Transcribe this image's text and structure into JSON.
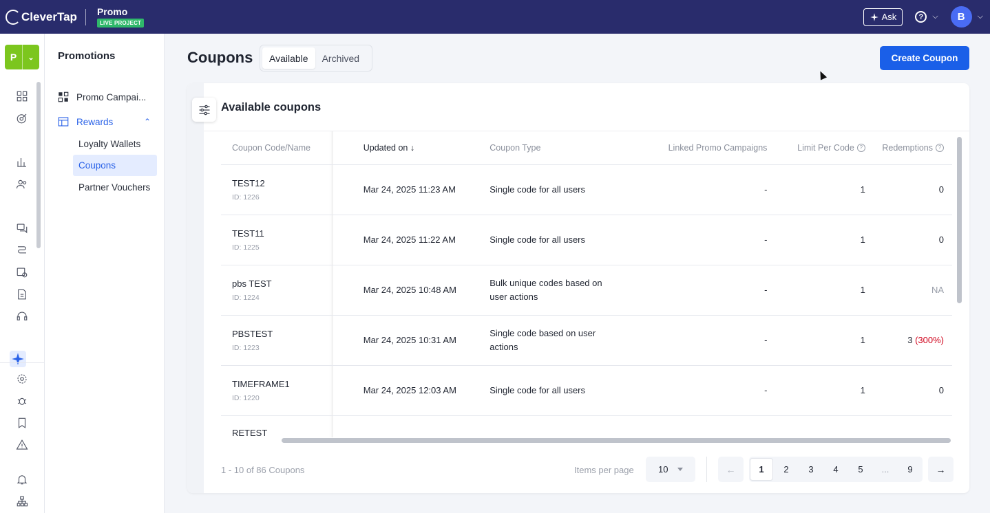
{
  "topbar": {
    "brand": "CleverTap",
    "project_name": "Promo",
    "project_badge": "LIVE PROJECT",
    "ask_label": "Ask",
    "help_icon": "?",
    "avatar_initial": "B"
  },
  "rail": {
    "project_initial": "P"
  },
  "subnav": {
    "title": "Promotions",
    "items": [
      {
        "label": "Promo Campai..."
      },
      {
        "label": "Rewards"
      }
    ],
    "rewards_children": [
      {
        "label": "Loyalty Wallets"
      },
      {
        "label": "Coupons"
      },
      {
        "label": "Partner Vouchers"
      }
    ]
  },
  "page": {
    "title": "Coupons",
    "tabs": [
      "Available",
      "Archived"
    ],
    "create_label": "Create Coupon"
  },
  "card": {
    "title": "Available coupons",
    "columns": [
      "Coupon Code/Name",
      "Updated on",
      "Coupon Type",
      "Linked Promo Campaigns",
      "Limit Per Code",
      "Redemptions"
    ],
    "sort_indicator": "↓",
    "rows": [
      {
        "name": "TEST12",
        "id": "ID: 1226",
        "updated": "Mar 24, 2025 11:23 AM",
        "type": "Single code for all users",
        "linked": "-",
        "limit": "1",
        "redemptions": "0",
        "redemptions_extra": ""
      },
      {
        "name": "TEST11",
        "id": "ID: 1225",
        "updated": "Mar 24, 2025 11:22 AM",
        "type": "Single code for all users",
        "linked": "-",
        "limit": "1",
        "redemptions": "0",
        "redemptions_extra": ""
      },
      {
        "name": "pbs TEST",
        "id": "ID: 1224",
        "updated": "Mar 24, 2025 10:48 AM",
        "type": "Bulk unique codes based on user actions",
        "linked": "-",
        "limit": "1",
        "redemptions": "NA",
        "redemptions_extra": ""
      },
      {
        "name": "PBSTEST",
        "id": "ID: 1223",
        "updated": "Mar 24, 2025 10:31 AM",
        "type": "Single code based on user actions",
        "linked": "-",
        "limit": "1",
        "redemptions": "3",
        "redemptions_extra": "(300%)"
      },
      {
        "name": "TIMEFRAME1",
        "id": "ID: 1220",
        "updated": "Mar 24, 2025 12:03 AM",
        "type": "Single code for all users",
        "linked": "-",
        "limit": "1",
        "redemptions": "0",
        "redemptions_extra": ""
      },
      {
        "name": "RETEST",
        "id": "",
        "updated": "",
        "type": "",
        "linked": "",
        "limit": "",
        "redemptions": "",
        "redemptions_extra": ""
      }
    ]
  },
  "pagination": {
    "summary": "1 - 10 of 86 Coupons",
    "items_per_page_label": "Items per page",
    "items_per_page_value": "10",
    "prev": "←",
    "next": "→",
    "pages": [
      "1",
      "2",
      "3",
      "4",
      "5",
      "...",
      "9"
    ],
    "current_page": "1"
  },
  "colors": {
    "topbar": "#292c6c",
    "accent": "#1a5fe8",
    "live_badge": "#2fb86a",
    "project_tile": "#7cc61e",
    "overdue": "#d0021b"
  }
}
